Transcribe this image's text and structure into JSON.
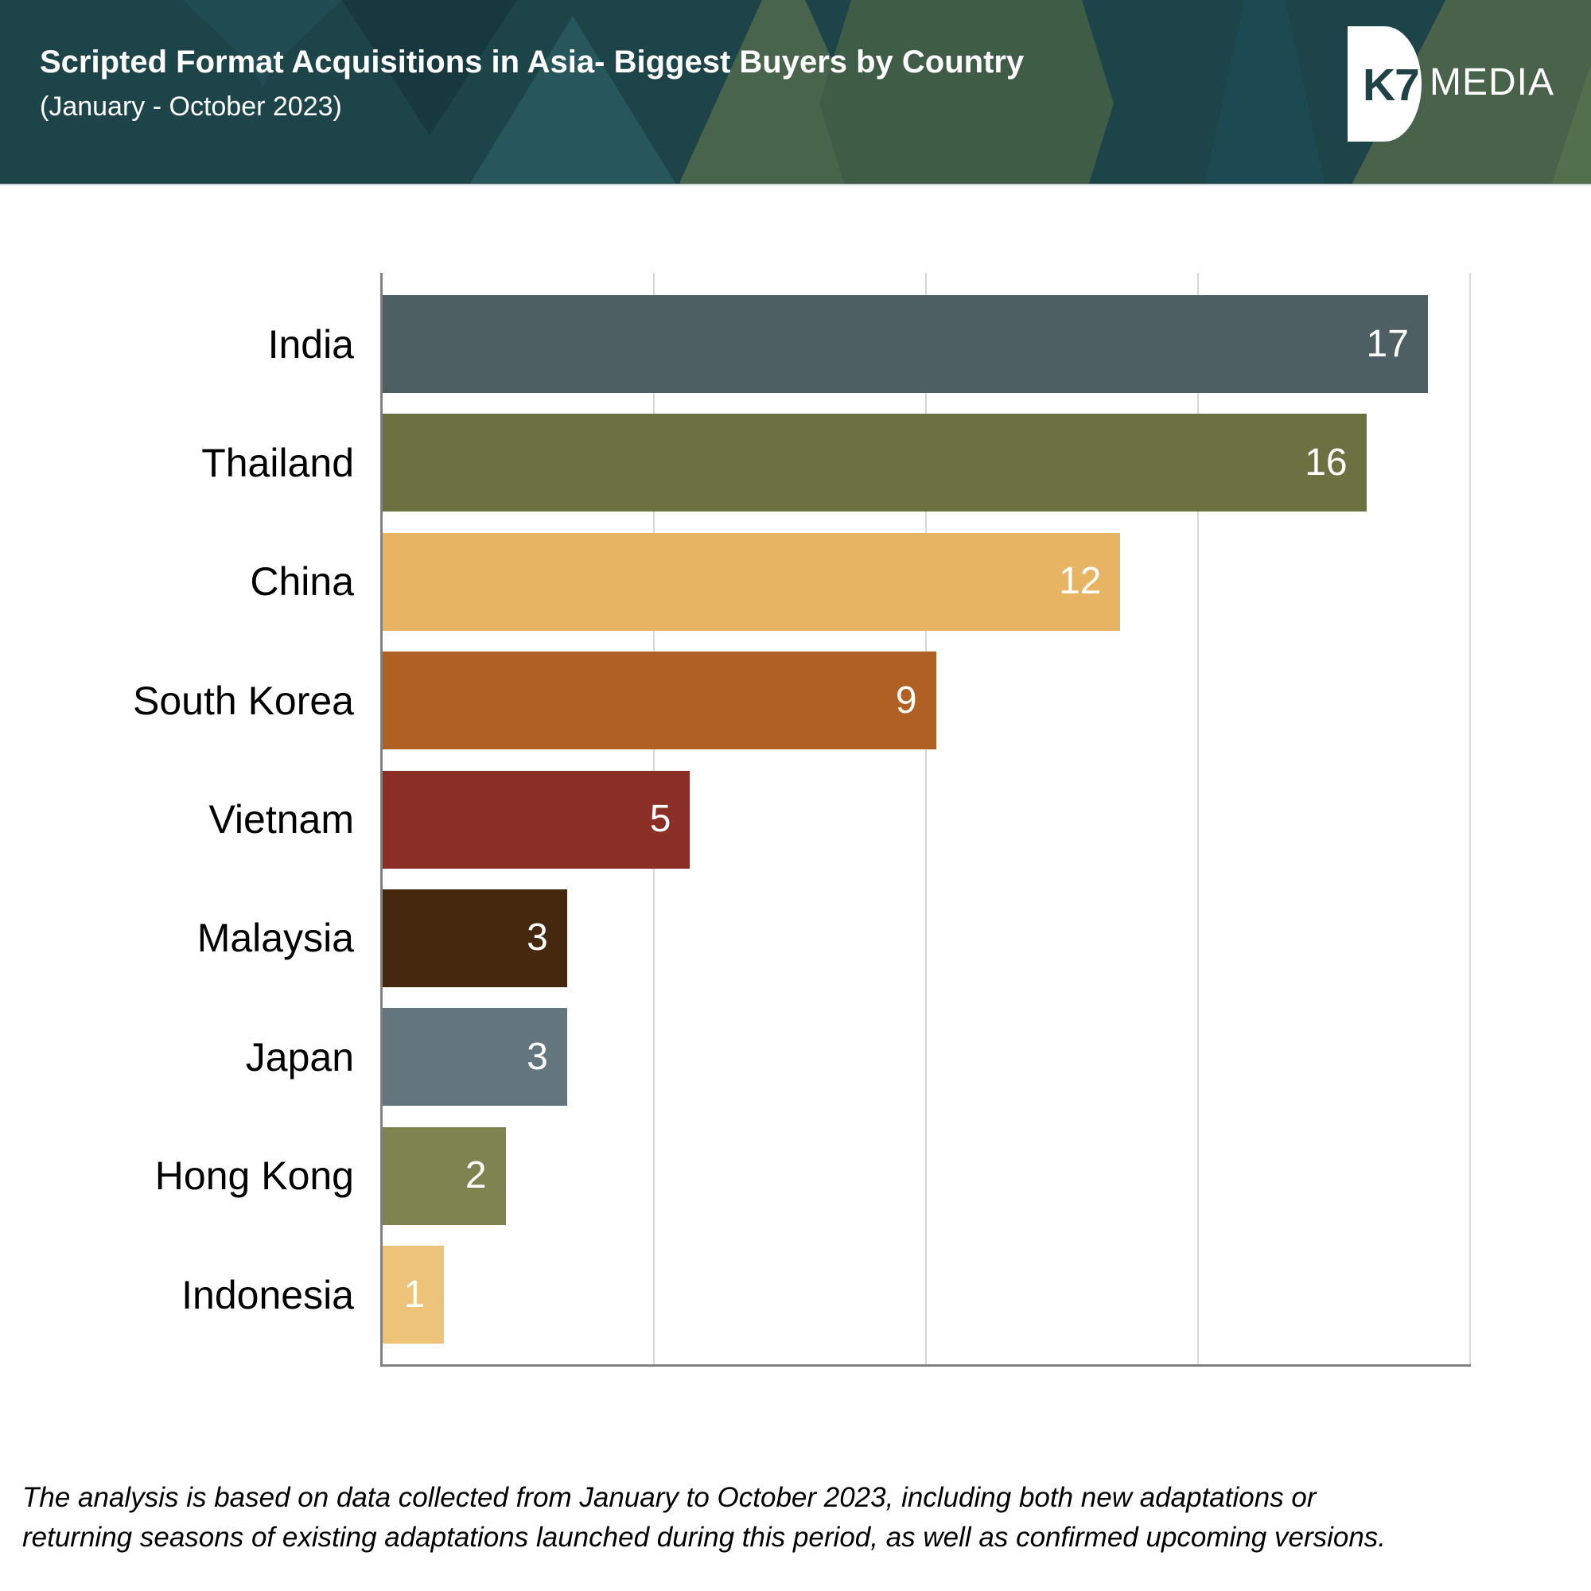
{
  "header": {
    "title": "Scripted Format Acquisitions in Asia- Biggest Buyers by Country",
    "subtitle": "(January - October 2023)",
    "background_color": "#1d4549",
    "logo": {
      "k7": "K7",
      "media": "MEDIA",
      "k7_color": "#1e4245",
      "disc_color": "#ffffff"
    }
  },
  "chart_data": {
    "type": "bar",
    "orientation": "horizontal",
    "title": "Scripted Format Acquisitions in Asia- Biggest Buyers by Country",
    "subtitle": "(January - October 2023)",
    "categories": [
      "India",
      "Thailand",
      "China",
      "South Korea",
      "Vietnam",
      "Malaysia",
      "Japan",
      "Hong Kong",
      "Indonesia"
    ],
    "values": [
      17,
      16,
      12,
      9,
      5,
      3,
      3,
      2,
      1
    ],
    "bar_colors": [
      "#4d5f63",
      "#6c7142",
      "#e7b464",
      "#b06023",
      "#8b2e25",
      "#46280e",
      "#63767e",
      "#7e8450",
      "#edc379"
    ],
    "xlim": [
      0,
      17.7
    ],
    "xlabel": "",
    "ylabel": "",
    "grid": "vertical quarter gridlines",
    "gridline_color": "#d9d9d9",
    "axis_line_color": "#808080",
    "value_label_color": "#ffffff",
    "category_label_color": "#000000",
    "legend": "none"
  },
  "footer": {
    "line1": "The analysis is based on data collected from January to October 2023, including both new adaptations or",
    "line2": "returning seasons of existing adaptations launched during this period, as well as confirmed upcoming versions."
  }
}
